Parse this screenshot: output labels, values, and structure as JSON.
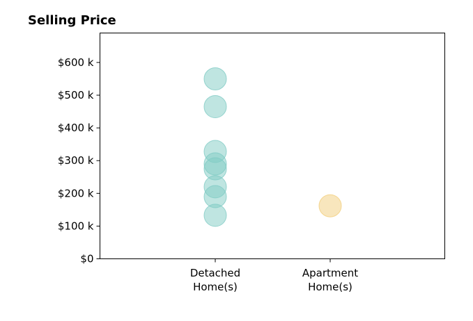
{
  "chart_data": {
    "type": "scatter",
    "title": "Selling Price",
    "xlabel": "",
    "ylabel": "",
    "categories": [
      {
        "label": [
          "Detached",
          "Home(s)"
        ]
      },
      {
        "label": [
          "Apartment",
          "Home(s)"
        ]
      }
    ],
    "ylim": [
      0,
      690000
    ],
    "yticks": [
      {
        "value": 0,
        "label": "$0"
      },
      {
        "value": 100000,
        "label": "$100 k"
      },
      {
        "value": 200000,
        "label": "$200 k"
      },
      {
        "value": 300000,
        "label": "$300 k"
      },
      {
        "value": 400000,
        "label": "$400 k"
      },
      {
        "value": 500000,
        "label": "$500 k"
      },
      {
        "value": 600000,
        "label": "$600 k"
      }
    ],
    "series": [
      {
        "category_index": 0,
        "color": "#80cbc4",
        "values": [
          550000,
          465000,
          328000,
          290000,
          275000,
          220000,
          190000,
          133000
        ]
      },
      {
        "category_index": 1,
        "color": "#f2ce7c",
        "values": [
          162000
        ]
      }
    ],
    "grid": false,
    "legend": "none"
  }
}
